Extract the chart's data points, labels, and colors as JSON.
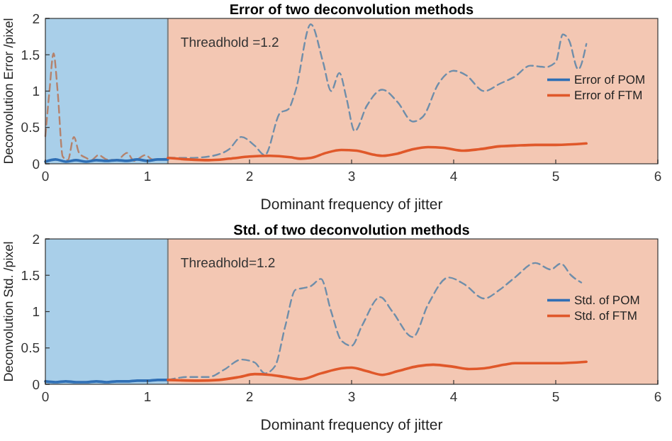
{
  "chart_data": [
    {
      "type": "line",
      "title": "Error of two deconvolution methods",
      "xlabel": "Dominant frequency of jitter",
      "ylabel": "Deconvolution Error /pixel",
      "xlim": [
        0,
        6
      ],
      "ylim": [
        0,
        2
      ],
      "xticks": [
        0,
        1,
        2,
        3,
        4,
        5,
        6
      ],
      "yticks": [
        0,
        0.5,
        1,
        1.5,
        2
      ],
      "grid": false,
      "legend": "right",
      "marker": "none",
      "bands": [
        {
          "axis": "x",
          "from": 0,
          "to": 1.2,
          "color": "#a9cfe9"
        },
        {
          "axis": "x",
          "from": 1.2,
          "to": 6,
          "color": "#f3c7b3"
        }
      ],
      "ref_lines": [
        {
          "axis": "x",
          "value": 1.2,
          "label": "Threadhold =1.2",
          "color": "#7f7f7f"
        }
      ],
      "series": [
        {
          "color": "#b5826c",
          "line_style": "dashed",
          "x": [
            0,
            0.04,
            0.08,
            0.12,
            0.17,
            0.22,
            0.28,
            0.33,
            0.4,
            0.45,
            0.52,
            0.6,
            0.7,
            0.8,
            0.87,
            0.98,
            1.05,
            1.2
          ],
          "values": [
            0.38,
            1.0,
            1.52,
            1.0,
            0.1,
            0.05,
            0.37,
            0.15,
            0.08,
            0.05,
            0.12,
            0.06,
            0.05,
            0.15,
            0.04,
            0.12,
            0.06,
            0.07
          ]
        },
        {
          "color": "#6f8eaa",
          "line_style": "dashed",
          "x": [
            1.2,
            1.4,
            1.6,
            1.8,
            1.92,
            2.05,
            2.15,
            2.3,
            2.38,
            2.45,
            2.6,
            2.72,
            2.8,
            2.88,
            2.95,
            3.03,
            3.15,
            3.3,
            3.45,
            3.6,
            3.7,
            3.85,
            4.0,
            4.12,
            4.3,
            4.45,
            4.6,
            4.75,
            4.9,
            5.0,
            5.07,
            5.13,
            5.22,
            5.3
          ],
          "values": [
            0.08,
            0.08,
            0.1,
            0.2,
            0.37,
            0.25,
            0.12,
            0.7,
            0.75,
            1.0,
            1.92,
            1.4,
            1.0,
            1.25,
            0.9,
            0.45,
            0.8,
            1.02,
            0.85,
            0.58,
            0.65,
            1.1,
            1.28,
            1.22,
            1.0,
            1.1,
            1.2,
            1.35,
            1.33,
            1.4,
            1.78,
            1.7,
            1.3,
            1.65
          ]
        },
        {
          "name": "Error of POM",
          "color": "#2f6fb5",
          "line_style": "solid",
          "x": [
            0,
            0.1,
            0.2,
            0.3,
            0.4,
            0.5,
            0.6,
            0.7,
            0.8,
            0.9,
            1.0,
            1.1,
            1.2
          ],
          "values": [
            0.03,
            0.06,
            0.03,
            0.05,
            0.03,
            0.05,
            0.04,
            0.05,
            0.04,
            0.06,
            0.04,
            0.06,
            0.06
          ]
        },
        {
          "name": "Error of FTM",
          "color": "#e0582a",
          "line_style": "solid",
          "x": [
            1.2,
            1.4,
            1.6,
            1.8,
            2.0,
            2.2,
            2.4,
            2.5,
            2.6,
            2.75,
            2.9,
            3.05,
            3.2,
            3.3,
            3.45,
            3.6,
            3.75,
            3.9,
            4.1,
            4.25,
            4.45,
            4.6,
            4.8,
            5.0,
            5.3
          ],
          "values": [
            0.08,
            0.06,
            0.05,
            0.07,
            0.1,
            0.11,
            0.09,
            0.07,
            0.08,
            0.15,
            0.19,
            0.18,
            0.13,
            0.11,
            0.14,
            0.2,
            0.23,
            0.22,
            0.18,
            0.2,
            0.24,
            0.25,
            0.26,
            0.26,
            0.28
          ]
        }
      ]
    },
    {
      "type": "line",
      "title": "Std. of two deconvolution methods",
      "xlabel": "Dominant frequency of jitter",
      "ylabel": "Deconvolution Std. /pixel",
      "xlim": [
        0,
        6
      ],
      "ylim": [
        0,
        2
      ],
      "xticks": [
        0,
        1,
        2,
        3,
        4,
        5,
        6
      ],
      "yticks": [
        0,
        0.5,
        1,
        1.5,
        2
      ],
      "grid": false,
      "legend": "right",
      "marker": "none",
      "bands": [
        {
          "axis": "x",
          "from": 0,
          "to": 1.2,
          "color": "#a9cfe9"
        },
        {
          "axis": "x",
          "from": 1.2,
          "to": 6,
          "color": "#f3c7b3"
        }
      ],
      "ref_lines": [
        {
          "axis": "x",
          "value": 1.2,
          "label": "Threadhold=1.2",
          "color": "#7f7f7f"
        }
      ],
      "series": [
        {
          "color": "#6f8eaa",
          "line_style": "dashed",
          "x": [
            1.2,
            1.4,
            1.6,
            1.75,
            1.92,
            2.05,
            2.15,
            2.25,
            2.35,
            2.45,
            2.55,
            2.6,
            2.7,
            2.8,
            2.9,
            3.0,
            3.1,
            3.28,
            3.4,
            3.6,
            3.75,
            3.95,
            4.1,
            4.3,
            4.45,
            4.6,
            4.8,
            4.95,
            5.05,
            5.15,
            5.25
          ],
          "values": [
            0.06,
            0.1,
            0.1,
            0.2,
            0.34,
            0.3,
            0.15,
            0.25,
            0.8,
            1.3,
            1.33,
            1.35,
            1.45,
            1.0,
            0.6,
            0.53,
            0.8,
            1.2,
            1.0,
            0.65,
            1.1,
            1.47,
            1.38,
            1.18,
            1.3,
            1.47,
            1.67,
            1.58,
            1.66,
            1.5,
            1.4
          ]
        },
        {
          "name": "Std. of POM",
          "color": "#2f6fb5",
          "line_style": "solid",
          "x": [
            0,
            0.1,
            0.2,
            0.3,
            0.4,
            0.5,
            0.6,
            0.7,
            0.8,
            0.9,
            1.0,
            1.1,
            1.2
          ],
          "values": [
            0.04,
            0.03,
            0.04,
            0.03,
            0.03,
            0.04,
            0.03,
            0.04,
            0.04,
            0.05,
            0.05,
            0.06,
            0.06
          ]
        },
        {
          "name": "Std. of FTM",
          "color": "#e0582a",
          "line_style": "solid",
          "x": [
            1.2,
            1.5,
            1.7,
            1.9,
            2.05,
            2.2,
            2.35,
            2.5,
            2.7,
            2.9,
            3.0,
            3.15,
            3.3,
            3.45,
            3.65,
            3.8,
            4.0,
            4.15,
            4.3,
            4.5,
            4.6,
            4.8,
            5.0,
            5.3
          ],
          "values": [
            0.06,
            0.05,
            0.06,
            0.1,
            0.14,
            0.13,
            0.1,
            0.07,
            0.15,
            0.22,
            0.23,
            0.18,
            0.13,
            0.18,
            0.25,
            0.27,
            0.24,
            0.21,
            0.22,
            0.27,
            0.29,
            0.29,
            0.29,
            0.31
          ]
        }
      ]
    }
  ]
}
